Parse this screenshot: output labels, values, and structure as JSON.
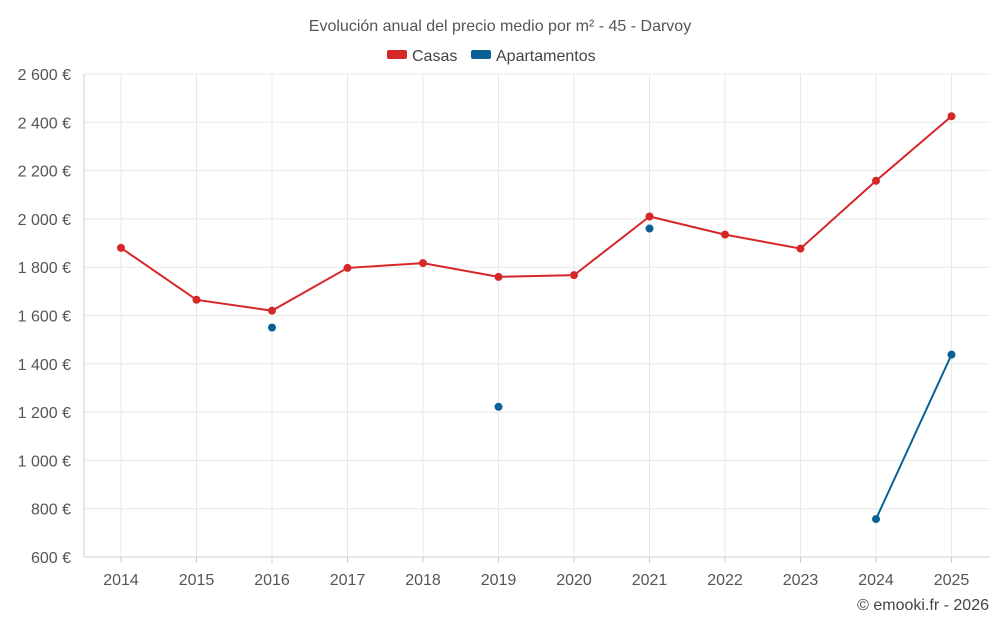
{
  "chart_data": {
    "type": "line",
    "title": "Evolución anual del precio medio por m² - 45 - Darvoy",
    "categories": [
      "2014",
      "2015",
      "2016",
      "2017",
      "2018",
      "2019",
      "2020",
      "2021",
      "2022",
      "2023",
      "2024",
      "2025"
    ],
    "ylim": [
      600,
      2600
    ],
    "yticks": [
      600,
      800,
      1000,
      1200,
      1400,
      1600,
      1800,
      2000,
      2200,
      2400,
      2600
    ],
    "ytick_labels": [
      "600 €",
      "800 €",
      "1 000 €",
      "1 200 €",
      "1 400 €",
      "1 600 €",
      "1 800 €",
      "2 000 €",
      "2 200 €",
      "2 400 €",
      "2 600 €"
    ],
    "grid": true,
    "legend_position": "top-center",
    "series": [
      {
        "name": "Casas",
        "color": "#d62728",
        "values": [
          1880,
          1665,
          1620,
          1797,
          1817,
          1760,
          1767,
          2010,
          1935,
          1877,
          2158,
          2425
        ]
      },
      {
        "name": "Apartamentos",
        "color": "#0b6196",
        "values": [
          null,
          null,
          1550,
          null,
          null,
          1222,
          null,
          1960,
          null,
          null,
          757,
          1438
        ]
      }
    ]
  },
  "credit": "© emooki.fr - 2026"
}
